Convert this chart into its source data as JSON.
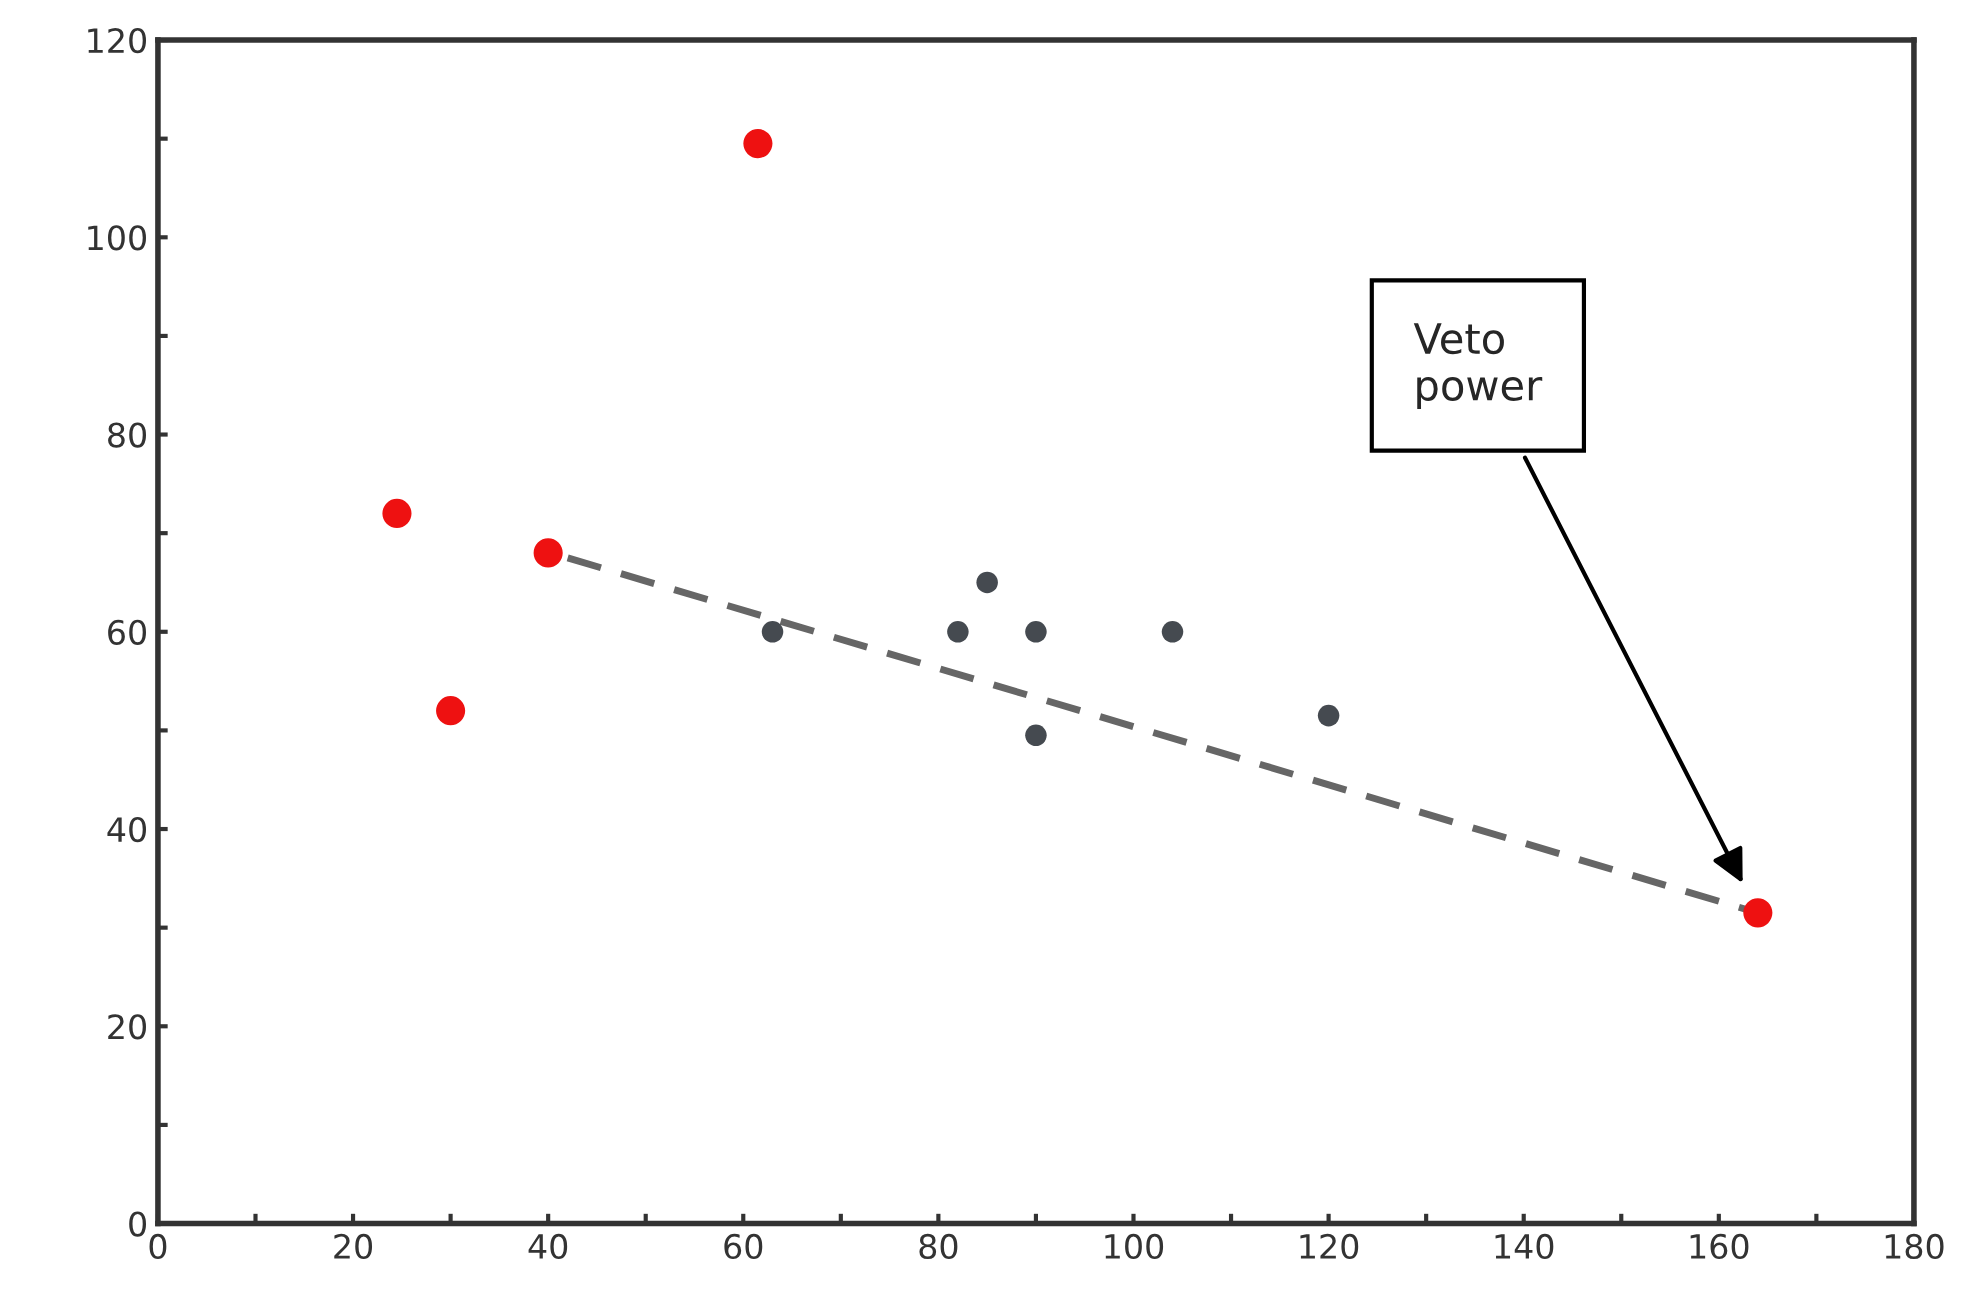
{
  "chart_data": {
    "type": "scatter",
    "xlim": [
      0,
      180
    ],
    "ylim": [
      0,
      120
    ],
    "xticks": [
      0,
      {
        "value": 10,
        "label": null
      },
      20,
      {
        "value": 30,
        "label": null
      },
      40,
      {
        "value": 50,
        "label": null
      },
      60,
      {
        "value": 70,
        "label": null
      },
      80,
      {
        "value": 90,
        "label": null
      },
      100,
      {
        "value": 110,
        "label": null
      },
      120,
      {
        "value": 130,
        "label": null
      },
      140,
      {
        "value": 150,
        "label": null
      },
      160,
      {
        "value": 170,
        "label": null
      },
      180
    ],
    "yticks": [
      0,
      {
        "value": 10,
        "label": null
      },
      20,
      {
        "value": 30,
        "label": null
      },
      40,
      {
        "value": 50,
        "label": null
      },
      60,
      {
        "value": 70,
        "label": null
      },
      80,
      {
        "value": 90,
        "label": null
      },
      100,
      {
        "value": 110,
        "label": null
      },
      120
    ],
    "grid": false,
    "marker": "circle",
    "series": [
      {
        "color": "#ee1111",
        "x": [
          24.5,
          30,
          40,
          61.5,
          164
        ],
        "values": [
          72,
          52,
          68,
          109.5,
          31.5
        ]
      },
      {
        "color": "#454a50",
        "x": [
          63,
          82,
          85,
          90,
          90,
          104,
          120
        ],
        "values": [
          60,
          60,
          65,
          60,
          49.5,
          60,
          51.5
        ]
      },
      {
        "type": "line",
        "color": "#666666",
        "line_style": "dashed",
        "marker": "none",
        "x": [
          42,
          164
        ],
        "values": [
          67.5,
          31.5
        ]
      }
    ],
    "annotations": [
      "Veto\npower"
    ]
  }
}
